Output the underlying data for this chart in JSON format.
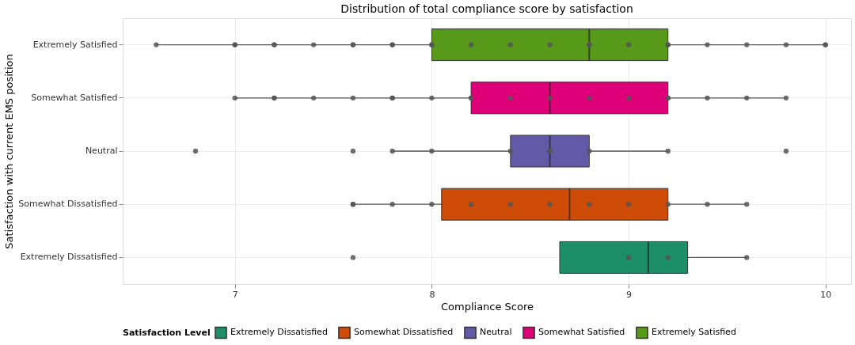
{
  "chart_data": {
    "type": "box",
    "orientation": "horizontal",
    "title": "Distribution of total compliance score by satisfaction",
    "xlabel": "Compliance Score",
    "ylabel": "Satisfaction with current EMS position",
    "legend_title": "Satisfaction Level",
    "legend": "bottom",
    "grid": true,
    "categories": [
      "Extremely Satisfied",
      "Somewhat Satisfied",
      "Neutral",
      "Somewhat Dissatisfied",
      "Extremely Dissatisfied"
    ],
    "xlim": [
      6.43,
      10.13
    ],
    "xticks": [
      7,
      8,
      9,
      10
    ],
    "series": [
      {
        "type": "box",
        "name": "Extremely Dissatisfied",
        "color": "#1d8f68",
        "boxes": [
          null,
          null,
          null,
          null,
          {
            "low": 8.65,
            "q1": 8.65,
            "median": 9.1,
            "q3": 9.3,
            "high": 9.6
          }
        ]
      },
      {
        "type": "box",
        "name": "Somewhat Dissatisfied",
        "color": "#cf4c08",
        "boxes": [
          null,
          null,
          null,
          {
            "low": 7.6,
            "q1": 8.05,
            "median": 8.7,
            "q3": 9.2,
            "high": 9.6
          },
          null
        ]
      },
      {
        "type": "box",
        "name": "Neutral",
        "color": "#625aa6",
        "boxes": [
          null,
          null,
          {
            "low": 7.8,
            "q1": 8.4,
            "median": 8.6,
            "q3": 8.8,
            "high": 9.2
          },
          null,
          null
        ]
      },
      {
        "type": "box",
        "name": "Somewhat Satisfied",
        "color": "#df0079",
        "boxes": [
          null,
          {
            "low": 7.0,
            "q1": 8.2,
            "median": 8.6,
            "q3": 9.2,
            "high": 9.8
          },
          null,
          null,
          null
        ]
      },
      {
        "type": "box",
        "name": "Extremely Satisfied",
        "color": "#579a19",
        "boxes": [
          {
            "low": 6.6,
            "q1": 8.0,
            "median": 8.8,
            "q3": 9.2,
            "high": 10.0
          },
          null,
          null,
          null,
          null
        ]
      },
      {
        "type": "scatter",
        "color": "#555555",
        "x": [
          "Extremely Satisfied",
          "Extremely Satisfied",
          "Extremely Satisfied",
          "Extremely Satisfied",
          "Extremely Satisfied",
          "Extremely Satisfied",
          "Extremely Satisfied",
          "Extremely Satisfied",
          "Extremely Satisfied",
          "Extremely Satisfied",
          "Extremely Satisfied",
          "Extremely Satisfied",
          "Extremely Satisfied",
          "Extremely Satisfied",
          "Extremely Satisfied",
          "Extremely Satisfied",
          "Extremely Satisfied",
          "Extremely Satisfied",
          "Extremely Satisfied",
          "Extremely Satisfied",
          "Extremely Satisfied",
          "Extremely Satisfied",
          "Extremely Satisfied",
          "Extremely Satisfied",
          "Extremely Satisfied",
          "Somewhat Satisfied",
          "Somewhat Satisfied",
          "Somewhat Satisfied",
          "Somewhat Satisfied",
          "Somewhat Satisfied",
          "Somewhat Satisfied",
          "Somewhat Satisfied",
          "Somewhat Satisfied",
          "Somewhat Satisfied",
          "Somewhat Satisfied",
          "Somewhat Satisfied",
          "Somewhat Satisfied",
          "Somewhat Satisfied",
          "Somewhat Satisfied",
          "Somewhat Satisfied",
          "Somewhat Satisfied",
          "Somewhat Satisfied",
          "Somewhat Satisfied",
          "Somewhat Satisfied",
          "Neutral",
          "Neutral",
          "Neutral",
          "Neutral",
          "Neutral",
          "Neutral",
          "Neutral",
          "Neutral",
          "Neutral",
          "Neutral",
          "Somewhat Dissatisfied",
          "Somewhat Dissatisfied",
          "Somewhat Dissatisfied",
          "Somewhat Dissatisfied",
          "Somewhat Dissatisfied",
          "Somewhat Dissatisfied",
          "Somewhat Dissatisfied",
          "Somewhat Dissatisfied",
          "Somewhat Dissatisfied",
          "Somewhat Dissatisfied",
          "Somewhat Dissatisfied",
          "Somewhat Dissatisfied",
          "Extremely Dissatisfied",
          "Extremely Dissatisfied",
          "Extremely Dissatisfied",
          "Extremely Dissatisfied"
        ],
        "values": [
          6.6,
          7.0,
          7.0,
          7.2,
          7.2,
          7.4,
          7.6,
          7.6,
          7.8,
          7.8,
          8.0,
          8.0,
          8.2,
          8.4,
          8.6,
          8.8,
          8.8,
          9.0,
          9.2,
          9.2,
          9.4,
          9.6,
          9.8,
          10.0,
          10.0,
          7.0,
          7.2,
          7.2,
          7.4,
          7.6,
          7.8,
          7.8,
          8.0,
          8.2,
          8.2,
          8.4,
          8.6,
          8.8,
          9.0,
          9.2,
          9.2,
          9.4,
          9.6,
          9.8,
          6.8,
          7.6,
          7.8,
          8.0,
          8.4,
          8.6,
          8.6,
          8.8,
          9.2,
          9.8,
          7.6,
          7.6,
          7.8,
          8.0,
          8.2,
          8.4,
          8.6,
          8.8,
          9.0,
          9.2,
          9.4,
          9.6,
          7.6,
          9.0,
          9.2,
          9.6
        ]
      }
    ]
  }
}
